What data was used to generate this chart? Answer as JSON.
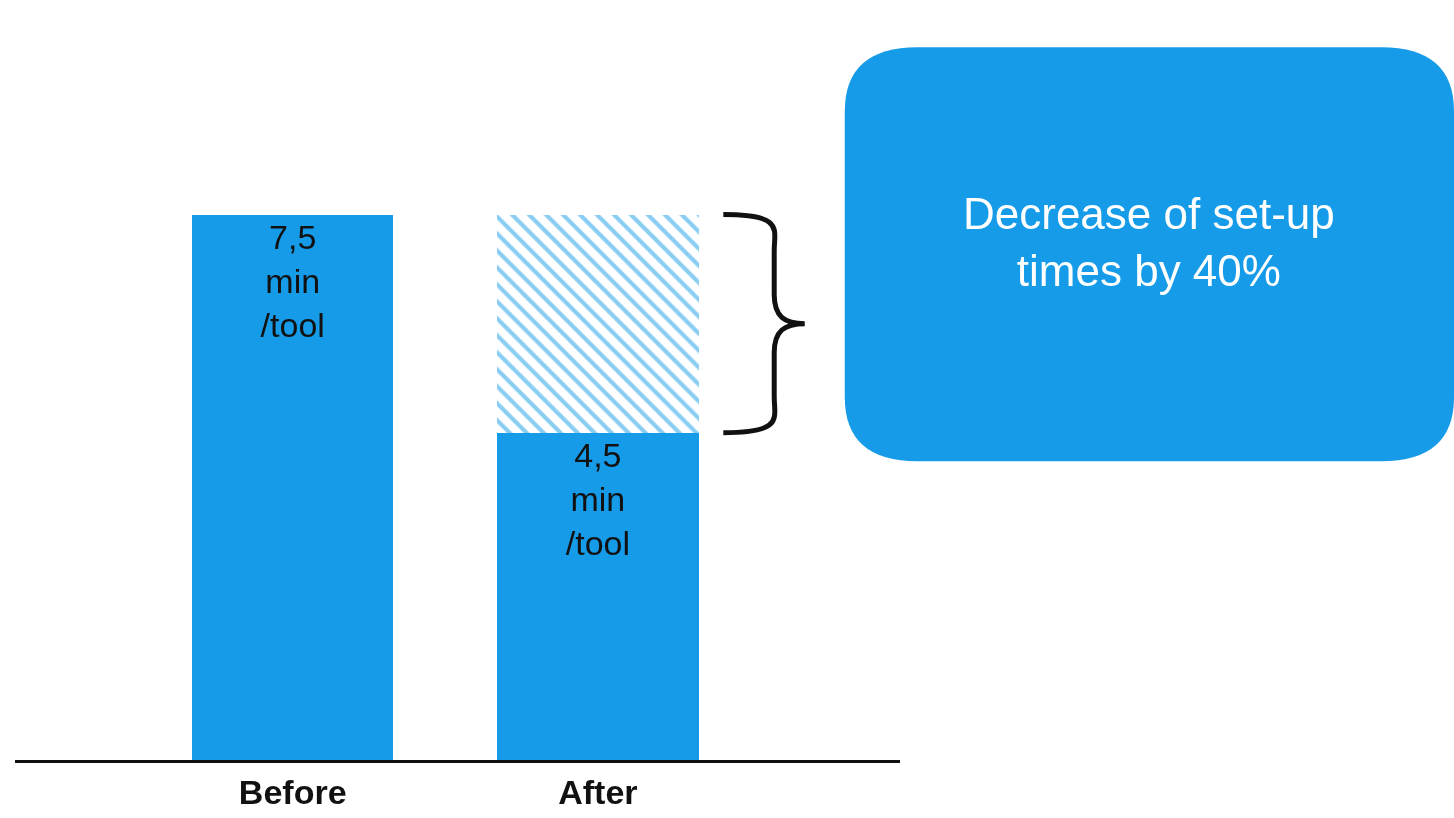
{
  "chart_data": {
    "type": "bar",
    "stacked": true,
    "categories": [
      "Before",
      "After"
    ],
    "series": [
      {
        "color": "#169be8",
        "values": [
          7.5,
          4.5
        ],
        "value_labels": [
          "7,5\nmin\n/tool",
          "4,5\nmin\n/tool"
        ]
      },
      {
        "color": "#169be8",
        "values": [
          null,
          3
        ]
      }
    ],
    "annotations": [
      "Decrease of set-up\ntimes by 40%"
    ]
  }
}
